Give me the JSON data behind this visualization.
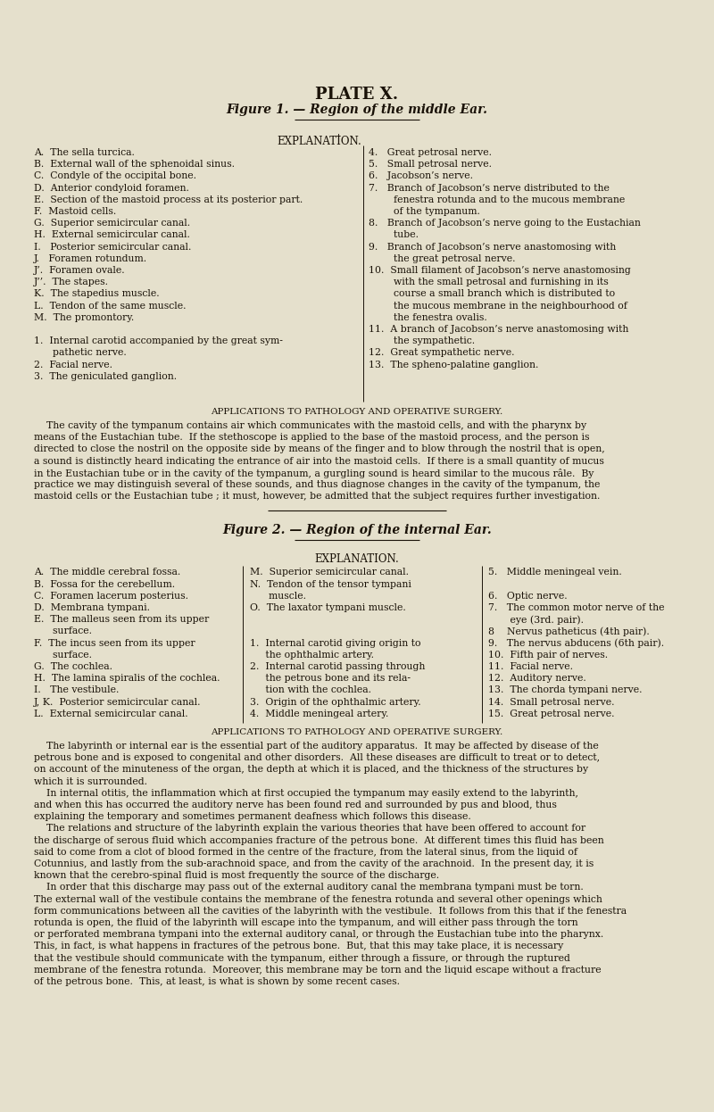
{
  "bg_color": "#e5e0cc",
  "text_color": "#1a1208",
  "title": "PLATE X.",
  "fig1_heading": "Figure 1. — Region of the middle Ear.",
  "explanation1": "EXPLANATION.",
  "fig1_left": [
    "A.  The sella turcica.",
    "B.  External wall of the sphenoidal sinus.",
    "C.  Condyle of the occipital bone.",
    "D.  Anterior condyloid foramen.",
    "E.  Section of the mastoid process at its posterior part.",
    "F.  Mastoid cells.",
    "G.  Superior semicircular canal.",
    "H.  External semicircular canal.",
    "I.   Posterior semicircular canal.",
    "J.   Foramen rotundum.",
    "J’.  Foramen ovale.",
    "J’’.  The stapes.",
    "K.  The stapedius muscle.",
    "L.  Tendon of the same muscle.",
    "M.  The promontory.",
    "",
    "1.  Internal carotid accompanied by the great sym-",
    "      pathetic nerve.",
    "2.  Facial nerve.",
    "3.  The geniculated ganglion."
  ],
  "fig1_right": [
    "4.   Great petrosal nerve.",
    "5.   Small petrosal nerve.",
    "6.   Jacobson’s nerve.",
    "7.   Branch of Jacobson’s nerve distributed to the",
    "        fenestra rotunda and to the mucous membrane",
    "        of the tympanum.",
    "8.   Branch of Jacobson’s nerve going to the Eustachian",
    "        tube.",
    "9.   Branch of Jacobson’s nerve anastomosing with",
    "        the great petrosal nerve.",
    "10.  Small filament of Jacobson’s nerve anastomosing",
    "        with the small petrosal and furnishing in its",
    "        course a small branch which is distributed to",
    "        the mucous membrane in the neighbourhood of",
    "        the fenestra ovalis.",
    "11.  A branch of Jacobson’s nerve anastomosing with",
    "        the sympathetic.",
    "12.  Great sympathetic nerve.",
    "13.  The spheno-palatine ganglion."
  ],
  "applications1_title": "APPLICATIONS TO PATHOLOGY AND OPERATIVE SURGERY.",
  "applications1_text": [
    "    The cavity of the tympanum contains air which communicates with the mastoid cells, and with the pharynx by",
    "means of the Eustachian tube.  If the stethoscope is applied to the base of the mastoid process, and the person is",
    "directed to close the nostril on the opposite side by means of the finger and to blow through the nostril that is open,",
    "a sound is distinctly heard indicating the entrance of air into the mastoid cells.  If there is a small quantity of mucus",
    "in the Eustachian tube or in the cavity of the tympanum, a gurgling sound is heard similar to the mucous râle.  By",
    "practice we may distinguish several of these sounds, and thus diagnose changes in the cavity of the tympanum, the",
    "mastoid cells or the Eustachian tube ; it must, however, be admitted that the subject requires further investigation."
  ],
  "fig2_heading": "Figure 2. — Region of the internal Ear.",
  "explanation2": "EXPLANATION.",
  "fig2_col1": [
    "A.  The middle cerebral fossa.",
    "B.  Fossa for the cerebellum.",
    "C.  Foramen lacerum posterius.",
    "D.  Membrana tympani.",
    "E.  The malleus seen from its upper",
    "      surface.",
    "F.  The incus seen from its upper",
    "      surface.",
    "G.  The cochlea.",
    "H.  The lamina spiralis of the cochlea.",
    "I.   The vestibule.",
    "J, K.  Posterior semicircular canal.",
    "L.  External semicircular canal."
  ],
  "fig2_col2": [
    "M.  Superior semicircular canal.",
    "N.  Tendon of the tensor tympani",
    "      muscle.",
    "O.  The laxator tympani muscle.",
    "",
    "",
    "1.  Internal carotid giving origin to",
    "     the ophthalmic artery.",
    "2.  Internal carotid passing through",
    "     the petrous bone and its rela-",
    "     tion with the cochlea.",
    "3.  Origin of the ophthalmic artery.",
    "4.  Middle meningeal artery."
  ],
  "fig2_col3": [
    "5.   Middle meningeal vein.",
    "",
    "6.   Optic nerve.",
    "7.   The common motor nerve of the",
    "       eye (3rd. pair).",
    "8    Nervus patheticus (4th pair).",
    "9.   The nervus abducens (6th pair).",
    "10.  Fifth pair of nerves.",
    "11.  Facial nerve.",
    "12.  Auditory nerve.",
    "13.  The chorda tympani nerve.",
    "14.  Small petrosal nerve.",
    "15.  Great petrosal nerve."
  ],
  "applications2_title": "APPLICATIONS TO PATHOLOGY AND OPERATIVE SURGERY.",
  "applications2_text": [
    "    The labyrinth or internal ear is the essential part of the auditory apparatus.  It may be affected by disease of the",
    "petrous bone and is exposed to congenital and other disorders.  All these diseases are difficult to treat or to detect,",
    "on account of the minuteness of the organ, the depth at which it is placed, and the thickness of the structures by",
    "which it is surrounded.",
    "    In internal otitis, the inflammation which at first occupied the tympanum may easily extend to the labyrinth,",
    "and when this has occurred the auditory nerve has been found red and surrounded by pus and blood, thus",
    "explaining the temporary and sometimes permanent deafness which follows this disease.",
    "    The relations and structure of the labyrinth explain the various theories that have been offered to account for",
    "the discharge of serous fluid which accompanies fracture of the petrous bone.  At different times this fluid has been",
    "said to come from a clot of blood formed in the centre of the fracture, from the lateral sinus, from the liquid of",
    "Cotunnius, and lastly from the sub-arachnoid space, and from the cavity of the arachnoid.  In the present day, it is",
    "known that the cerebro-spinal fluid is most frequently the source of the discharge.",
    "    In order that this discharge may pass out of the external auditory canal the membrana tympani must be torn.",
    "The external wall of the vestibule contains the membrane of the fenestra rotunda and several other openings which",
    "form communications between all the cavities of the labyrinth with the vestibule.  It follows from this that if the fenestra",
    "rotunda is open, the fluid of the labyrinth will escape into the tympanum, and will either pass through the torn",
    "or perforated membrana tympani into the external auditory canal, or through the Eustachian tube into the pharynx.",
    "This, in fact, is what happens in fractures of the petrous bone.  But, that this may take place, it is necessary",
    "that the vestibule should communicate with the tympanum, either through a fissure, or through the ruptured",
    "membrane of the fenestra rotunda.  Moreover, this membrane may be torn and the liquid escape without a fracture",
    "of the petrous bone.  This, at least, is what is shown by some recent cases."
  ]
}
